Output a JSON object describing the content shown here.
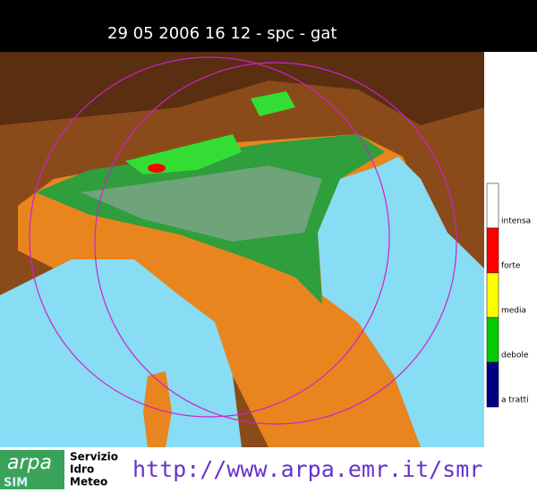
{
  "header": {
    "title": "29 05 2006 16 12 - spc - gat"
  },
  "legend": [
    {
      "label": "intensa",
      "color": "#ffffff"
    },
    {
      "label": "forte",
      "color": "#ff0000"
    },
    {
      "label": "media",
      "color": "#ffff00"
    },
    {
      "label": "debole",
      "color": "#00cc00"
    },
    {
      "label": "a tratti",
      "color": "#000080"
    }
  ],
  "footer": {
    "logo": "arpa",
    "logo_sub": "SIM",
    "org_lines": [
      "Servizio",
      "Idro",
      "Meteo"
    ],
    "url": "http://www.arpa.emr.it/smr"
  }
}
